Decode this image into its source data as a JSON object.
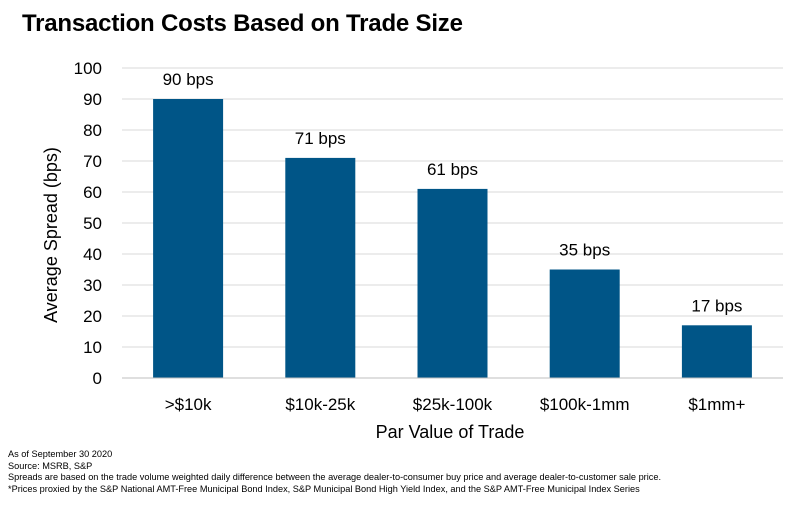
{
  "chart_data": {
    "type": "bar",
    "title": "Transaction Costs Based on Trade Size",
    "xlabel": "Par Value of Trade",
    "ylabel": "Average  Spread (bps)",
    "categories": [
      ">$10k",
      "$10k-25k",
      "$25k-100k",
      "$100k-1mm",
      "$1mm+"
    ],
    "values": [
      90,
      71,
      61,
      35,
      17
    ],
    "data_labels": [
      "90 bps",
      "71 bps",
      "61 bps",
      "35 bps",
      "17 bps"
    ],
    "ylim": [
      0,
      100
    ],
    "yticks": [
      0,
      10,
      20,
      30,
      40,
      50,
      60,
      70,
      80,
      90,
      100
    ],
    "grid": true,
    "legend": "none",
    "bar_color": "#005587",
    "grid_color": "#d9d9d9"
  },
  "notes": {
    "as_of": "As of September  30 2020",
    "source": "Source:  MSRB, S&P",
    "methodology": "Spreads are based on the trade volume weighted daily difference  between the average dealer-to-consumer  buy price and average dealer-to-customer  sale price.",
    "footnote": "*Prices proxied by the S&P National AMT-Free Municipal Bond Index, S&P Municipal Bond High Yield Index, and the S&P AMT-Free Municipal Index Series"
  }
}
